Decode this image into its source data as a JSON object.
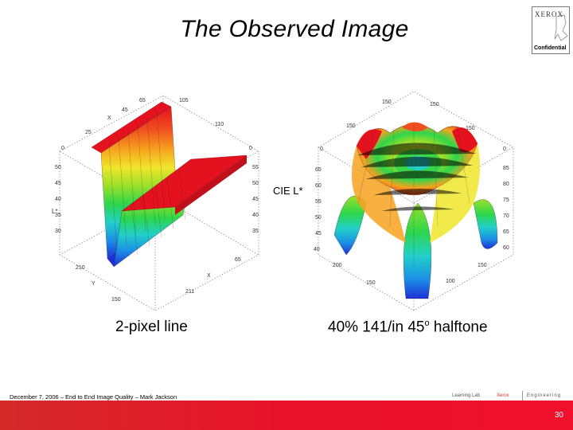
{
  "slide": {
    "title": "The Observed Image",
    "logo_brand": "XEROX",
    "logo_confidential": "Confidential",
    "center_label": "CIE L*",
    "caption_left": "2-pixel line",
    "caption_right_main": "40% 141/in 45",
    "caption_right_sup": "o",
    "caption_right_tail": " halftone",
    "footer_text": "December 7, 2006 – End to End Image Quality – Mark Jackson",
    "footer_logo_1": "Learning Lab",
    "footer_logo_2": "Xerox",
    "footer_logo_3": "Engineering",
    "page_number": "30"
  },
  "colors": {
    "accent_bar": "#e8122a",
    "surface_scale": [
      "#1e2fd6",
      "#1b8fe6",
      "#22d0c8",
      "#2dd64a",
      "#9be02a",
      "#f0e62a",
      "#f7a21e",
      "#f0501e",
      "#e4121e"
    ]
  },
  "icons": {
    "logo": "xerox-logo-icon"
  }
}
